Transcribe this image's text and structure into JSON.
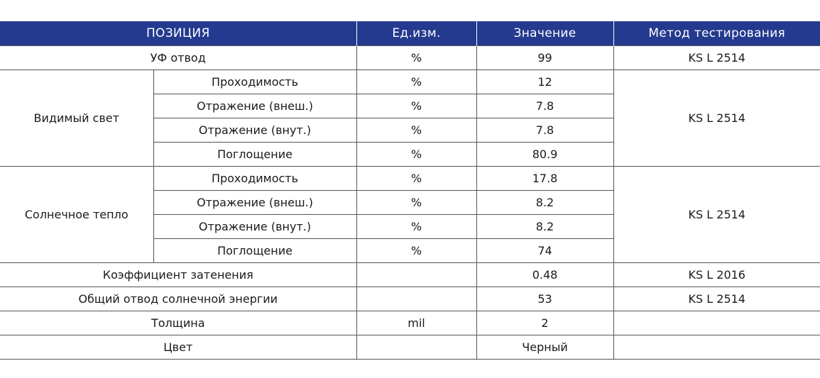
{
  "header": {
    "position": "ПОЗИЦИЯ",
    "unit": "Ед.изм.",
    "value": "Значение",
    "method": "Метод тестирования"
  },
  "rows": {
    "uv": {
      "label": "УФ отвод",
      "unit": "%",
      "value": "99",
      "method": "KS L 2514"
    },
    "visible": {
      "label": "Видимый свет",
      "method": "KS L 2514",
      "items": [
        {
          "label": "Проходимость",
          "unit": "%",
          "value": "12"
        },
        {
          "label": "Отражение (внеш.)",
          "unit": "%",
          "value": "7.8"
        },
        {
          "label": "Отражение (внут.)",
          "unit": "%",
          "value": "7.8"
        },
        {
          "label": "Поглощение",
          "unit": "%",
          "value": "80.9"
        }
      ]
    },
    "solar": {
      "label": "Солнечное тепло",
      "method": "KS L 2514",
      "items": [
        {
          "label": "Проходимость",
          "unit": "%",
          "value": "17.8"
        },
        {
          "label": "Отражение (внеш.)",
          "unit": "%",
          "value": "8.2"
        },
        {
          "label": "Отражение (внут.)",
          "unit": "%",
          "value": "8.2"
        },
        {
          "label": "Поглощение",
          "unit": "%",
          "value": "74"
        }
      ]
    },
    "shading": {
      "label": "Коэффициент затенения",
      "unit": "",
      "value": "0.48",
      "method": "KS L 2016"
    },
    "tser": {
      "label": "Общий отвод солнечной энергии",
      "unit": "",
      "value": "53",
      "method": "KS L 2514"
    },
    "thickness": {
      "label": "Толщина",
      "unit": "mil",
      "value": "2",
      "method": ""
    },
    "color": {
      "label": "Цвет",
      "unit": "",
      "value": "Черный",
      "method": ""
    }
  },
  "colors": {
    "header_bg": "#233a8f",
    "header_text": "#ffffff",
    "border": "#555555"
  }
}
